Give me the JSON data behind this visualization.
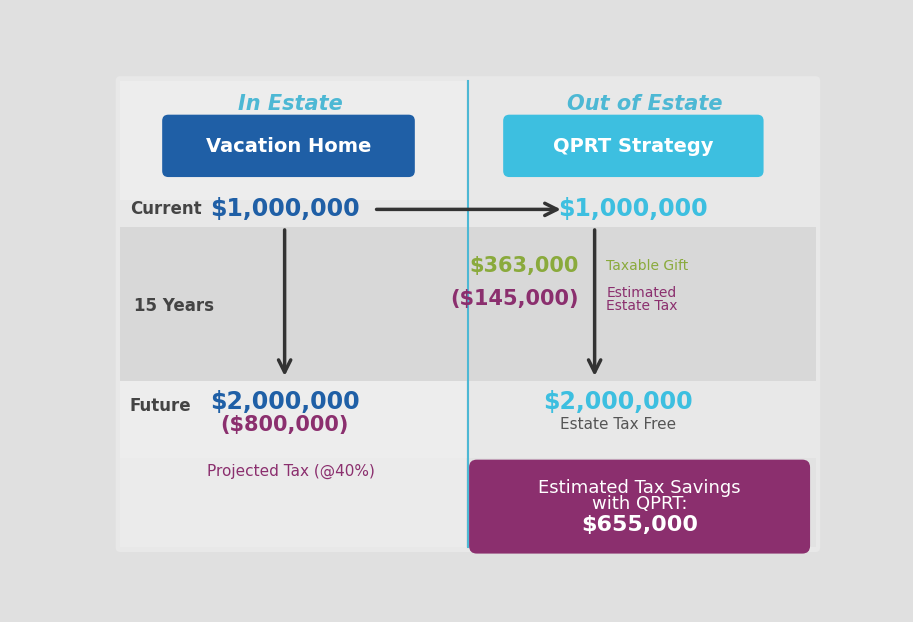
{
  "bg_outer": "#e0e0e0",
  "bg_left": "#ebebeb",
  "bg_right": "#e8e8e8",
  "bg_mid": "#d8d8d8",
  "bg_bottom": "#ececec",
  "divider_color": "#4db8d4",
  "in_estate_label": "In Estate",
  "out_estate_label": "Out of Estate",
  "header_color": "#4db8d4",
  "vacation_home_text": "Vacation Home",
  "vacation_home_bg": "#1f5fa6",
  "qprt_strategy_text": "QPRT Strategy",
  "qprt_strategy_bg": "#3dbfe0",
  "current_label": "Current",
  "current_left_value": "$1,000,000",
  "current_right_value": "$1,000,000",
  "current_left_color": "#1f5fa6",
  "current_right_color": "#3dbfe0",
  "years_label": "15 Years",
  "taxable_gift_value": "$363,000",
  "taxable_gift_color": "#8aaa3c",
  "taxable_gift_label": "Taxable Gift",
  "taxable_gift_label_color": "#8aaa3c",
  "est_tax_value": "($145,000)",
  "est_tax_color": "#8b2f6e",
  "est_tax_label_line1": "Estimated",
  "est_tax_label_line2": "Estate Tax",
  "est_tax_label_color": "#8b2f6e",
  "future_label": "Future",
  "future_left_value": "$2,000,000",
  "future_left_tax": "($800,000)",
  "future_left_color": "#1f5fa6",
  "future_left_tax_color": "#8b2f6e",
  "future_right_value": "$2,000,000",
  "future_right_sub": "Estate Tax Free",
  "future_right_color": "#3dbfe0",
  "future_right_sub_color": "#555555",
  "projected_tax_text": "Projected Tax (@40%)",
  "projected_tax_color": "#8b2f6e",
  "savings_box_bg": "#8b2f6e",
  "savings_line1": "Estimated Tax Savings",
  "savings_line2": "with QPRT:",
  "savings_value": "$655,000",
  "savings_text_color": "#ffffff",
  "label_color": "#444444",
  "arrow_color": "#333333"
}
